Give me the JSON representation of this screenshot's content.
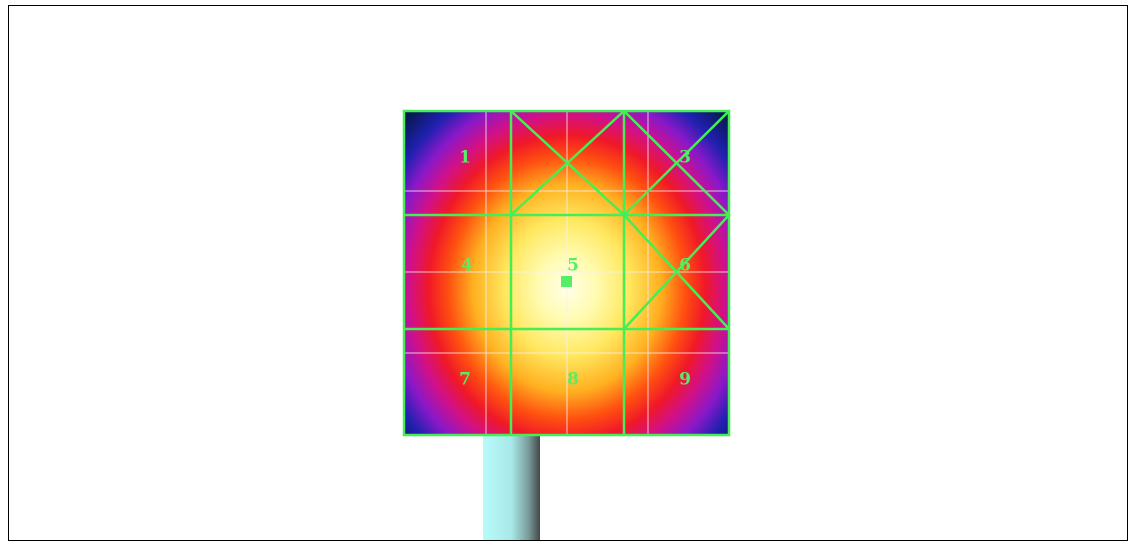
{
  "panels": [
    {
      "label": "1"
    },
    {
      "label": "3"
    },
    {
      "label": "4"
    },
    {
      "label": "5"
    },
    {
      "label": "6"
    },
    {
      "label": "7"
    },
    {
      "label": "8"
    },
    {
      "label": "9"
    }
  ]
}
